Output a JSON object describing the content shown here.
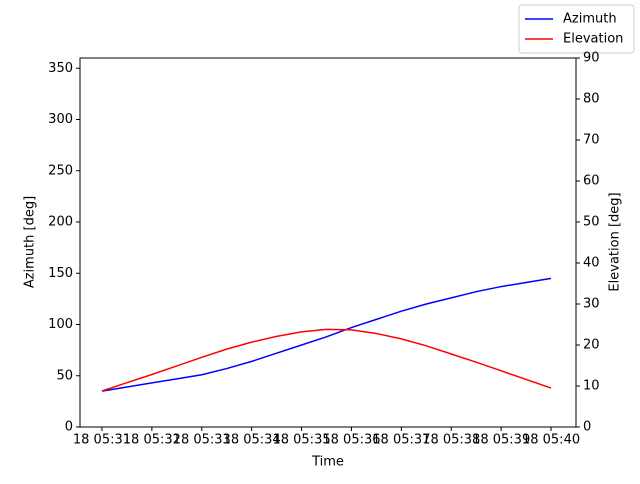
{
  "chart_data": {
    "type": "line",
    "x_label": "Time",
    "y_label": "Azimuth [deg]",
    "y2_label": "Elevation [deg]",
    "x": [
      31,
      31.5,
      32,
      32.5,
      33,
      33.5,
      34,
      34.5,
      35,
      35.5,
      36,
      36.5,
      37,
      37.5,
      38,
      38.5,
      39,
      39.5,
      40
    ],
    "series": [
      {
        "name": "Azimuth",
        "color": "#0000ff",
        "axis": "y",
        "values": [
          35,
          39,
          43,
          47,
          51,
          57,
          64,
          72,
          80,
          88,
          97,
          105,
          113,
          120,
          126,
          132,
          137,
          141,
          145
        ]
      },
      {
        "name": "Elevation",
        "color": "#ff0000",
        "axis": "y2",
        "values": [
          8.8,
          10.8,
          12.8,
          14.9,
          17,
          19,
          20.7,
          22.1,
          23.2,
          23.8,
          23.7,
          22.8,
          21.5,
          19.8,
          17.8,
          15.8,
          13.7,
          11.6,
          9.5
        ]
      }
    ],
    "xlim": [
      30.56,
      40.5
    ],
    "xticks": [
      {
        "value": 31,
        "label": "18 05:31"
      },
      {
        "value": 32,
        "label": "18 05:32"
      },
      {
        "value": 33,
        "label": "18 05:33"
      },
      {
        "value": 34,
        "label": "18 05:34"
      },
      {
        "value": 35,
        "label": "18 05:35"
      },
      {
        "value": 36,
        "label": "18 05:36"
      },
      {
        "value": 37,
        "label": "18 05:37"
      },
      {
        "value": 38,
        "label": "18 05:38"
      },
      {
        "value": 39,
        "label": "18 05:39"
      },
      {
        "value": 40,
        "label": "18 05:40"
      }
    ],
    "ylim": [
      0,
      360
    ],
    "yticks": [
      0,
      50,
      100,
      150,
      200,
      250,
      300,
      350
    ],
    "y2lim": [
      0,
      90
    ],
    "y2ticks": [
      0,
      10,
      20,
      30,
      40,
      50,
      60,
      70,
      80,
      90
    ],
    "legend": "upper right",
    "grid": false
  }
}
